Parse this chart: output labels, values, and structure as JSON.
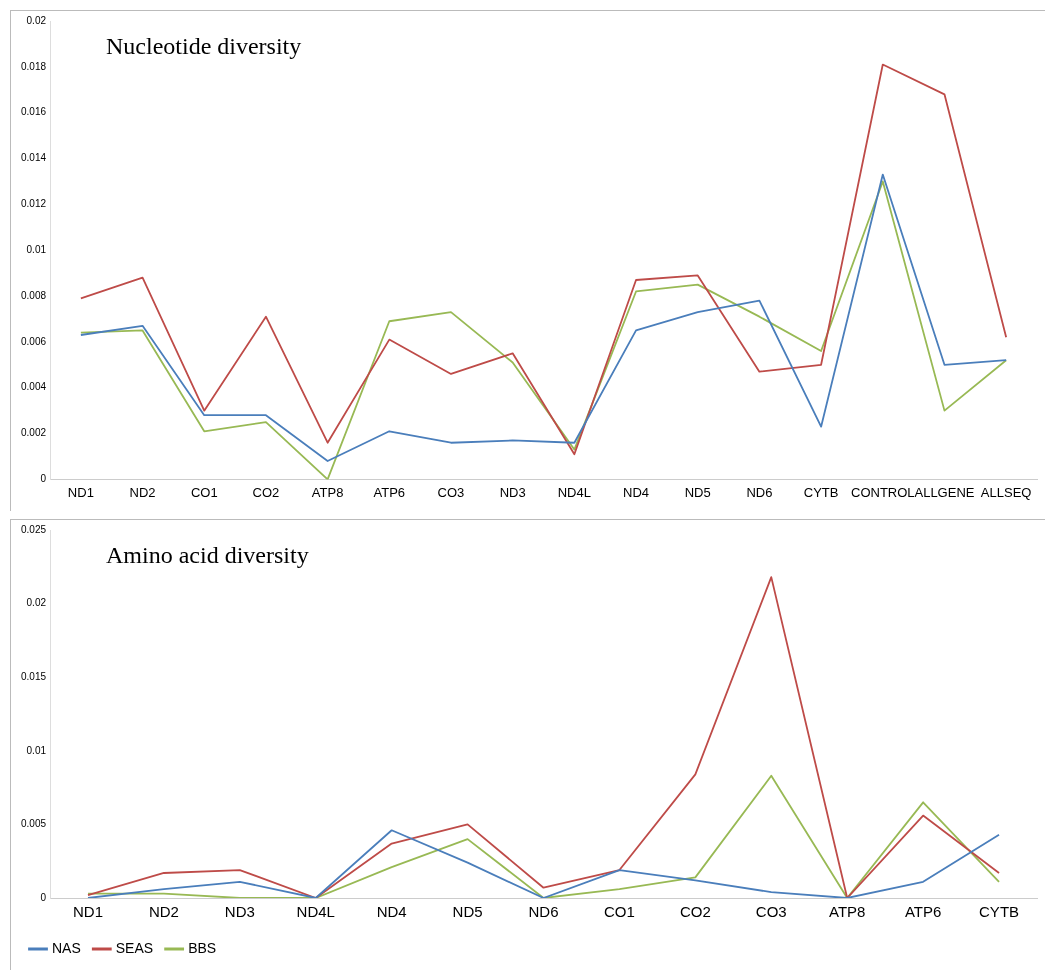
{
  "chart_data": [
    {
      "type": "line",
      "title": "Nucleotide diversity",
      "categories": [
        "ND1",
        "ND2",
        "CO1",
        "CO2",
        "ATP8",
        "ATP6",
        "CO3",
        "ND3",
        "ND4L",
        "ND4",
        "ND5",
        "ND6",
        "CYTB",
        "CONTROL",
        "ALLGENE",
        "ALLSEQ"
      ],
      "series": [
        {
          "color": "#4a7ebb",
          "values": [
            0.0063,
            0.0067,
            0.0028,
            0.0028,
            0.0008,
            0.0021,
            0.0016,
            0.0017,
            0.0016,
            0.0065,
            0.0073,
            0.0078,
            0.0023,
            0.0133,
            0.005,
            0.0052
          ]
        },
        {
          "color": "#be4b48",
          "values": [
            0.0079,
            0.0088,
            0.003,
            0.0071,
            0.0016,
            0.0061,
            0.0046,
            0.0055,
            0.0011,
            0.0087,
            0.0089,
            0.0047,
            0.005,
            0.0181,
            0.0168,
            0.0062
          ]
        },
        {
          "color": "#98b954",
          "values": [
            0.0064,
            0.0065,
            0.0021,
            0.0025,
            0,
            0.0069,
            0.0073,
            0.0051,
            0.0013,
            0.0082,
            0.0085,
            0.0071,
            0.0056,
            0.013,
            0.003,
            0.0052
          ]
        }
      ],
      "ylim": [
        0,
        0.02
      ],
      "yticks": [
        0,
        0.002,
        0.004,
        0.006,
        0.008,
        0.01,
        0.012,
        0.014,
        0.016,
        0.018,
        0.02
      ],
      "grid": false,
      "legend": false,
      "marker": "none",
      "line_style": "solid"
    },
    {
      "type": "line",
      "title": "Amino acid diversity",
      "categories": [
        "ND1",
        "ND2",
        "ND3",
        "ND4L",
        "ND4",
        "ND5",
        "ND6",
        "CO1",
        "CO2",
        "CO3",
        "ATP8",
        "ATP6",
        "CYTB"
      ],
      "series": [
        {
          "name": "NAS",
          "color": "#4a7ebb",
          "values": [
            0,
            0.0006,
            0.0011,
            0,
            0.0046,
            0.0024,
            0,
            0.0019,
            0.0012,
            0.0004,
            0,
            0.0011,
            0.0043
          ]
        },
        {
          "name": "SEAS",
          "color": "#be4b48",
          "values": [
            0.0002,
            0.0017,
            0.0019,
            0,
            0.0037,
            0.005,
            0.0007,
            0.0019,
            0.0084,
            0.0218,
            0,
            0.0056,
            0.0017
          ]
        },
        {
          "name": "BBS",
          "color": "#98b954",
          "values": [
            0.0003,
            0.0003,
            0,
            0,
            0.0021,
            0.004,
            0,
            0.0006,
            0.0014,
            0.0083,
            0,
            0.0065,
            0.0011
          ]
        }
      ],
      "ylim": [
        0,
        0.025
      ],
      "yticks": [
        0,
        0.005,
        0.01,
        0.015,
        0.02,
        0.025
      ],
      "grid": false,
      "legend": "bottom left",
      "marker": "none",
      "line_style": "solid"
    }
  ]
}
